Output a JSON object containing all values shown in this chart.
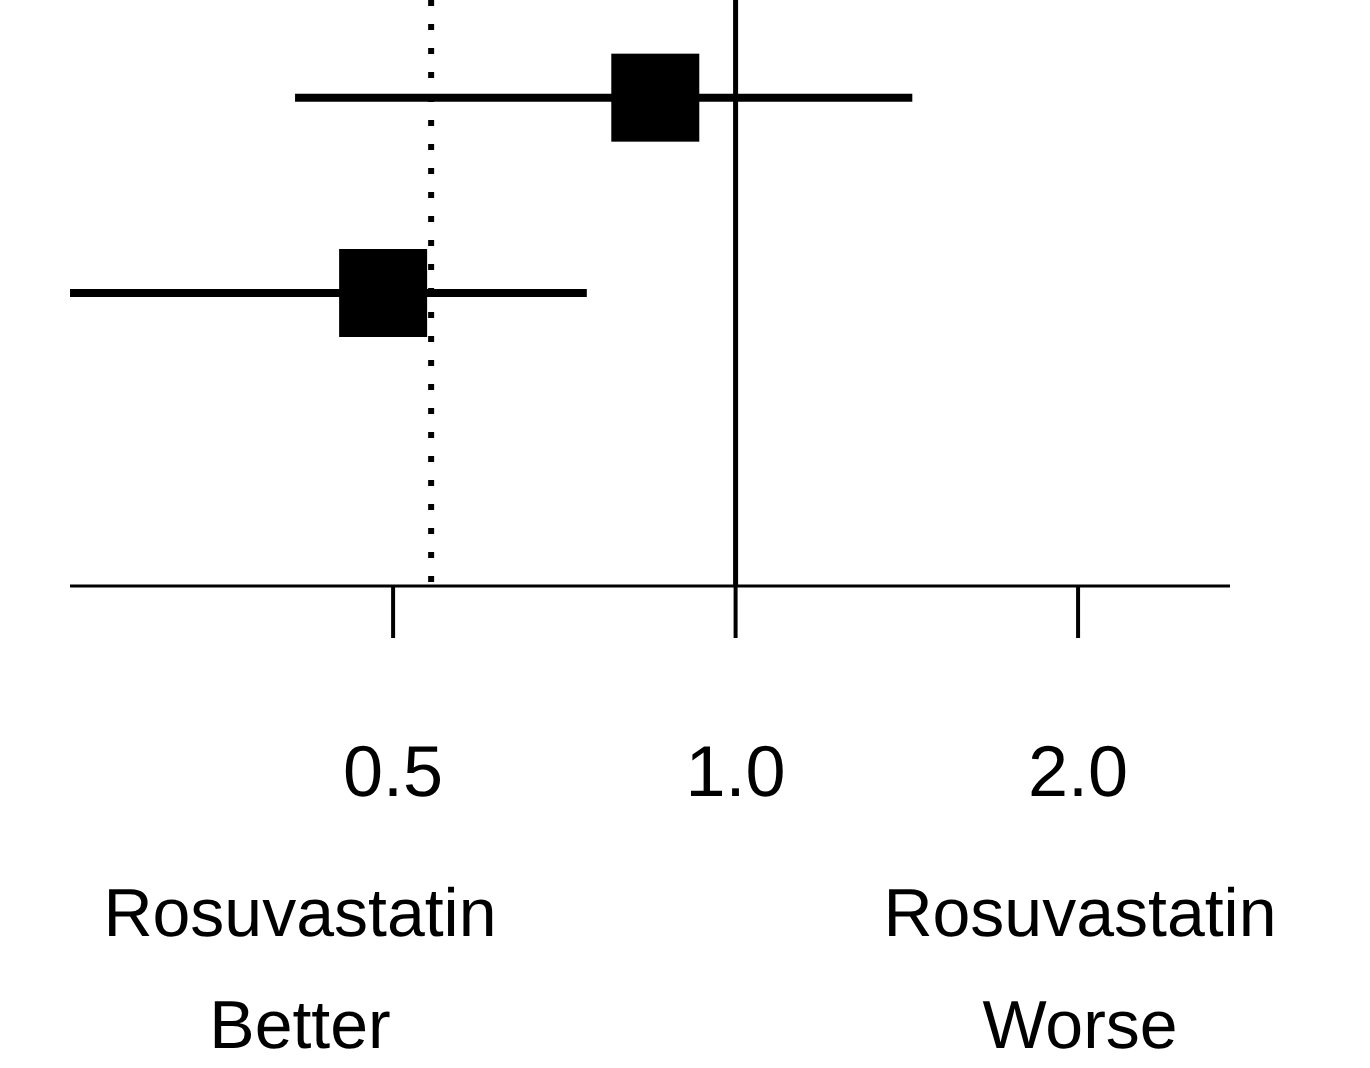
{
  "chart_data": {
    "type": "scatter",
    "orientation": "horizontal",
    "categories": [
      null,
      null,
      null
    ],
    "values": [
      0.85,
      0.49,
      null
    ],
    "errors": [
      [
        0.41,
        1.43
      ],
      [
        0.26,
        0.74
      ],
      null
    ],
    "color": "#000000",
    "marker": "square",
    "log": "x",
    "xlim": [
      0.26,
      2.72
    ],
    "xticks": [
      0.5,
      {
        "value": 1,
        "label": "1.0"
      },
      {
        "value": 2,
        "label": "2.0"
      }
    ],
    "tick_labels": "x",
    "ref_lines": [
      {
        "axis": "x",
        "value": 1,
        "line_style": "solid"
      },
      {
        "axis": "x",
        "value": 0.54,
        "line_style": "dotted"
      }
    ],
    "annotations": [
      "Rosuvastatin Better",
      "Rosuvastatin Worse"
    ]
  }
}
